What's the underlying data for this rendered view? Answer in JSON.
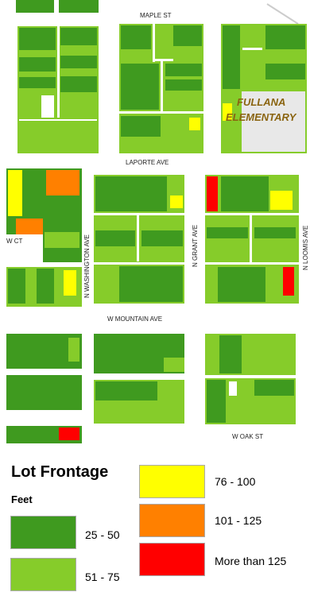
{
  "map": {
    "streets": {
      "maple": "MAPLE ST",
      "laporte": "LAPORTE AVE",
      "washington": "N WASHINGTON AVE",
      "grant": "N GRANT AVE",
      "loomis": "N LOOMIS AVE",
      "w_ct": "W CT",
      "mountain": "W MOUNTAIN AVE",
      "oak": "W OAK ST"
    },
    "school": {
      "line1": "FULLANA",
      "line2": "ELEMENTARY"
    }
  },
  "legend": {
    "title": "Lot Frontage",
    "subtitle": "Feet",
    "classes": [
      {
        "label": "25 - 50",
        "color": "#3f9a1f"
      },
      {
        "label": "51 - 75",
        "color": "#86cc2a"
      },
      {
        "label": "76 - 100",
        "color": "#ffff00"
      },
      {
        "label": "101 - 125",
        "color": "#ff8000"
      },
      {
        "label": "More than 125",
        "color": "#ff0000"
      }
    ]
  }
}
